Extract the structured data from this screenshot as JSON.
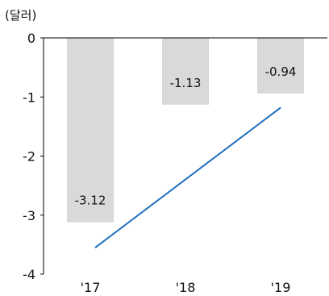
{
  "chart_data": {
    "type": "bar",
    "unit_label": "(달러)",
    "categories": [
      "'17",
      "'18",
      "'19"
    ],
    "values": [
      -3.12,
      -1.13,
      -0.94
    ],
    "value_labels": [
      "-3.12",
      "-1.13",
      "-0.94"
    ],
    "y_ticks": [
      0,
      -1,
      -2,
      -3,
      -4
    ],
    "y_tick_labels": [
      "0",
      "-1",
      "-2",
      "-3",
      "-4"
    ],
    "ylim": [
      -4,
      0
    ],
    "grid": false,
    "legend": "none",
    "trend_line": {
      "start": {
        "x": "'17",
        "y": -3.55
      },
      "end": {
        "x": "'19",
        "y": -1.18
      }
    },
    "colors": {
      "bar": "#d9d9d9",
      "line": "#1f6fbf",
      "axis": "#000000"
    }
  }
}
